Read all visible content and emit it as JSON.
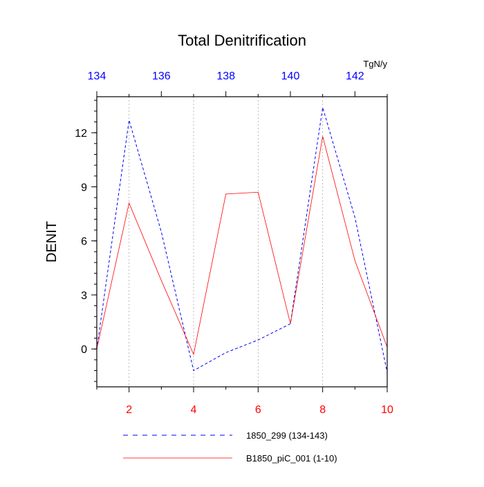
{
  "chart_data": {
    "type": "line",
    "title": "Total Denitrification",
    "ylabel": "DENIT",
    "units_label": "TgN/y",
    "grid": "vertical dotted lines at bottom-axis major ticks",
    "bottom_axis": {
      "range": [
        1,
        10
      ],
      "ticks": [
        2,
        4,
        6,
        8,
        10
      ],
      "tick_labels": [
        "2",
        "4",
        "6",
        "8",
        "10"
      ],
      "color": "#ff0000"
    },
    "top_axis": {
      "range": [
        134,
        143
      ],
      "ticks": [
        134,
        136,
        138,
        140,
        142
      ],
      "tick_labels": [
        "134",
        "136",
        "138",
        "140",
        "142"
      ],
      "color": "#0000ff"
    },
    "y_axis": {
      "range": [
        -2.1,
        14.0
      ],
      "ticks": [
        0,
        3,
        6,
        9,
        12
      ],
      "tick_labels": [
        "0",
        "3",
        "6",
        "9",
        "12"
      ],
      "minor_step": 0.6
    },
    "series": [
      {
        "name": "1850_299 (134-143)",
        "axis": "top",
        "x": [
          134,
          135,
          136,
          137,
          138,
          139,
          140,
          141,
          142,
          143
        ],
        "values": [
          0.0,
          12.7,
          6.5,
          -1.2,
          -0.2,
          0.5,
          1.4,
          13.4,
          7.3,
          -1.3
        ],
        "color": "#0000ff",
        "style": "dashed"
      },
      {
        "name": "B1850_piC_001 (1-10)",
        "axis": "bottom",
        "x": [
          1,
          2,
          3,
          4,
          5,
          6,
          7,
          8,
          9,
          10
        ],
        "values": [
          0.0,
          8.1,
          3.8,
          -0.3,
          8.6,
          8.7,
          1.4,
          11.8,
          4.9,
          0.1
        ],
        "color": "#ff0000",
        "style": "solid"
      }
    ]
  }
}
